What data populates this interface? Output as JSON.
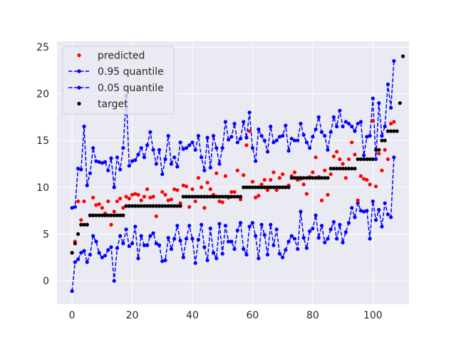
{
  "chart_data": {
    "type": "scatter",
    "xlim": [
      -5,
      112
    ],
    "ylim": [
      -2.5,
      25.6
    ],
    "xticks": [
      0,
      20,
      40,
      60,
      80,
      100
    ],
    "yticks": [
      0,
      5,
      10,
      15,
      20,
      25
    ],
    "grid": true,
    "legend_position": "top-left",
    "colors": {
      "background": "#EAEAF2",
      "grid": "#FFFFFF",
      "predicted": "#FF0000",
      "quantile": "#0000FF",
      "target": "#000000"
    },
    "series": [
      {
        "name": "predicted",
        "style": "points",
        "color": "#FF0000",
        "y": [
          3.0,
          4.2,
          8.5,
          6.5,
          8.5,
          6.0,
          7.0,
          8.9,
          8.1,
          8.2,
          7.8,
          7.2,
          8.5,
          6.0,
          7.4,
          8.5,
          8.8,
          7.8,
          9.0,
          8.8,
          9.2,
          9.3,
          9.2,
          8.6,
          9.0,
          9.8,
          8.9,
          9.0,
          6.9,
          8.0,
          9.5,
          9.2,
          8.6,
          8.7,
          9.8,
          9.7,
          8.3,
          10.2,
          10.1,
          7.9,
          9.8,
          8.5,
          11.0,
          10.0,
          7.8,
          10.5,
          9.8,
          9.2,
          11.5,
          8.5,
          8.4,
          11.2,
          8.9,
          9.5,
          9.5,
          11.8,
          8.7,
          11.3,
          14.5,
          16.0,
          10.6,
          8.9,
          9.1,
          10.3,
          10.8,
          9.7,
          10.8,
          11.6,
          9.7,
          11.0,
          11.4,
          10.0,
          10.2,
          11.2,
          11.6,
          10.8,
          10.9,
          10.3,
          9.3,
          11.1,
          11.6,
          13.2,
          11.1,
          8.6,
          11.8,
          9.2,
          11.4,
          13.3,
          13.8,
          13.0,
          12.5,
          11.0,
          13.0,
          14.8,
          13.5,
          8.6,
          11.2,
          10.9,
          10.8,
          10.3,
          17.1,
          10.1,
          13.6,
          11.8,
          14.0,
          13.0,
          16.8,
          17.0
        ]
      },
      {
        "name": "0.95 quantile",
        "style": "dashed-line-points",
        "color": "#0000FF",
        "y": [
          7.8,
          7.9,
          12.0,
          11.9,
          16.5,
          10.2,
          11.5,
          14.2,
          12.8,
          12.7,
          12.6,
          12.7,
          11.8,
          13.1,
          10.0,
          13.2,
          11.9,
          14.2,
          19.8,
          12.3,
          12.8,
          12.9,
          13.5,
          14.2,
          13.2,
          14.5,
          15.9,
          14.0,
          12.5,
          14.0,
          11.4,
          13.0,
          15.5,
          12.5,
          13.2,
          12.2,
          14.8,
          14.1,
          14.2,
          14.5,
          14.8,
          14.0,
          15.5,
          13.2,
          11.8,
          15.3,
          12.1,
          15.5,
          14.2,
          12.5,
          14.2,
          17.0,
          15.1,
          15.4,
          16.8,
          14.8,
          15.2,
          17.0,
          15.3,
          18.0,
          14.2,
          12.8,
          16.2,
          15.5,
          15.0,
          13.8,
          16.5,
          14.8,
          15.0,
          15.4,
          15.5,
          16.6,
          13.9,
          15.2,
          15.0,
          15.0,
          16.8,
          15.6,
          14.8,
          14.2,
          15.4,
          16.2,
          17.5,
          15.9,
          15.5,
          14.0,
          15.9,
          17.5,
          16.5,
          18.2,
          16.5,
          17.0,
          16.8,
          16.5,
          16.0,
          16.8,
          17.0,
          13.4,
          15.4,
          15.5,
          19.5,
          13.0,
          19.0,
          15.5,
          16.5,
          21.0,
          18.5,
          23.5
        ]
      },
      {
        "name": "0.05 quantile",
        "style": "dashed-line-points",
        "color": "#0000FF",
        "y": [
          -1.1,
          2.0,
          2.3,
          3.0,
          3.2,
          2.0,
          2.8,
          4.8,
          4.2,
          3.0,
          2.5,
          2.7,
          3.3,
          3.6,
          0.0,
          3.5,
          4.8,
          4.0,
          5.5,
          3.7,
          4.0,
          5.8,
          2.4,
          4.8,
          3.8,
          3.8,
          4.8,
          5.1,
          4.0,
          3.8,
          2.1,
          2.2,
          4.6,
          3.4,
          4.5,
          5.9,
          4.3,
          2.5,
          4.5,
          5.9,
          4.5,
          1.9,
          4.4,
          6.0,
          3.6,
          2.2,
          5.6,
          3.0,
          2.4,
          6.1,
          2.9,
          5.9,
          4.2,
          4.2,
          3.4,
          5.4,
          6.2,
          3.4,
          2.8,
          5.8,
          6.2,
          4.8,
          2.4,
          6.0,
          4.9,
          2.8,
          6.0,
          3.8,
          5.5,
          2.9,
          2.5,
          3.3,
          4.2,
          4.8,
          4.5,
          3.4,
          7.4,
          4.6,
          3.5,
          5.3,
          5.6,
          7.0,
          4.6,
          5.9,
          4.1,
          4.5,
          5.5,
          6.3,
          4.5,
          6.0,
          4.1,
          5.2,
          6.2,
          7.8,
          6.8,
          8.3,
          7.5,
          7.4,
          7.5,
          4.5,
          8.5,
          6.5,
          7.6,
          5.8,
          8.3,
          7.1,
          6.8,
          13.2
        ]
      },
      {
        "name": "target",
        "style": "points",
        "color": "#000000",
        "y": [
          3.0,
          4.0,
          5.0,
          6.0,
          6.0,
          6.0,
          7.0,
          7.0,
          7.0,
          7.0,
          7.0,
          7.0,
          7.0,
          7.0,
          7.0,
          7.0,
          7.0,
          7.0,
          8.0,
          8.0,
          8.0,
          8.0,
          8.0,
          8.0,
          8.0,
          8.0,
          8.0,
          8.0,
          8.0,
          8.0,
          8.0,
          8.0,
          8.0,
          8.0,
          8.0,
          8.0,
          8.0,
          9.0,
          9.0,
          9.0,
          9.0,
          9.0,
          9.0,
          9.0,
          9.0,
          9.0,
          9.0,
          9.0,
          9.0,
          9.0,
          9.0,
          9.0,
          9.0,
          9.0,
          9.0,
          9.0,
          9.0,
          10.0,
          10.0,
          10.0,
          10.0,
          10.0,
          10.0,
          10.0,
          10.0,
          10.0,
          10.0,
          10.0,
          10.0,
          10.0,
          10.0,
          10.0,
          10.0,
          11.0,
          11.0,
          11.0,
          11.0,
          11.0,
          11.0,
          11.0,
          11.0,
          11.0,
          11.0,
          11.0,
          11.0,
          11.0,
          12.0,
          12.0,
          12.0,
          12.0,
          12.0,
          12.0,
          12.0,
          12.0,
          12.0,
          13.0,
          13.0,
          13.0,
          13.0,
          13.0,
          13.0,
          14.0,
          14.0,
          15.0,
          15.0,
          16.0,
          16.0,
          16.0,
          16.0,
          19.0,
          24.0
        ]
      }
    ]
  }
}
